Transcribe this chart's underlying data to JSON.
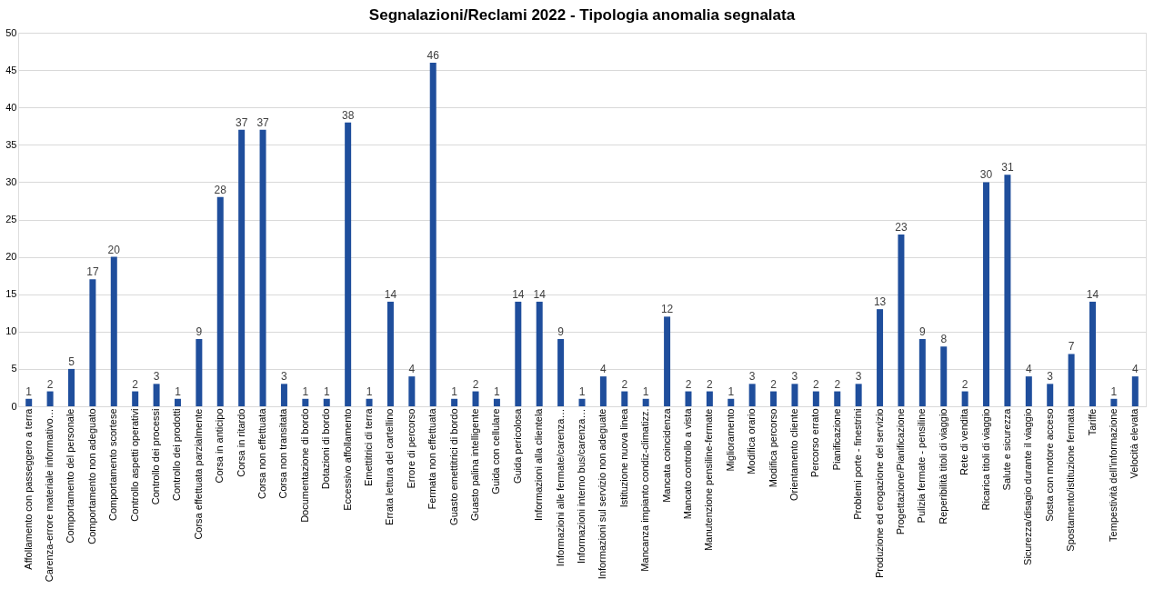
{
  "chart_data": {
    "type": "bar",
    "title": "Segnalazioni/Reclami 2022 - Tipologia anomalia segnalata",
    "categories": [
      "Affollamento con passeggero a terra",
      "Carenza-errore materiale informativo…",
      "Comportamento del personale",
      "Comportamento non adeguato",
      "Comportamento scortese",
      "Controllo aspetti operativi",
      "Controllo dei processi",
      "Controllo dei prodotti",
      "Corsa effettuata parzialmente",
      "Corsa in anticipo",
      "Corsa in ritardo",
      "Corsa non effettuata",
      "Corsa non transitata",
      "Documentazione di bordo",
      "Dotazioni di bordo",
      "Eccessivo affollamento",
      "Emettitrici di terra",
      "Errata lettura del cartellino",
      "Errore di percorso",
      "Fermata non effettuata",
      "Guasto emettitrici di bordo",
      "Guasto palina intelligente",
      "Guida con cellulare",
      "Guida pericolosa",
      "Informazioni alla clientela",
      "Informazioni alle fermate/carenza…",
      "Informazioni interno bus/carenza…",
      "Informazioni sul servizio non adeguate",
      "Istituzione nuova linea",
      "Mancanza impianto condiz-climatizz.",
      "Mancata coincidenza",
      "Mancato controllo a vista",
      "Manutenzione pensiline-fermate",
      "Miglioramento",
      "Modifica orario",
      "Modifica percorso",
      "Orientamento cliente",
      "Percorso errato",
      "Pianificazione",
      "Problemi porte - finestrini",
      "Produzione ed erogazione del servizio",
      "Progettazione/Pianificazione",
      "Pulizia fermate - pensiline",
      "Reperibilità titoli di viaggio",
      "Rete di vendita",
      "Ricarica titoli di viaggio",
      "Salute e sicurezza",
      "Sicurezza/disagio durante il viaggio",
      "Sosta con motore acceso",
      "Spostamento/istituzione fermata",
      "Tariffe",
      "Tempestività dell'informazione",
      "Velocità elevata"
    ],
    "values": [
      1,
      2,
      5,
      17,
      20,
      2,
      3,
      1,
      9,
      28,
      37,
      37,
      3,
      1,
      1,
      38,
      1,
      14,
      4,
      46,
      1,
      2,
      1,
      14,
      14,
      9,
      1,
      4,
      2,
      1,
      12,
      2,
      2,
      1,
      3,
      2,
      3,
      2,
      2,
      3,
      13,
      23,
      9,
      8,
      2,
      30,
      31,
      4,
      3,
      7,
      14,
      1,
      4
    ],
    "color": "#1f4e9c",
    "ylim": [
      0,
      50
    ],
    "yticks": [
      0,
      5,
      10,
      15,
      20,
      25,
      30,
      35,
      40,
      45,
      50
    ],
    "grid": "y",
    "data_labels": true
  }
}
